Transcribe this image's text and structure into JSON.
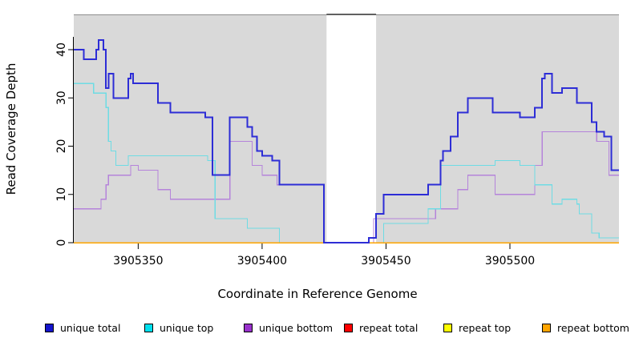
{
  "chart_data": {
    "type": "line",
    "subtype": "step-after",
    "title": "",
    "xlabel": "Coordinate in Reference Genome",
    "ylabel": "Read Coverage Depth",
    "xlim": [
      3905324,
      3905544
    ],
    "ylim": [
      0,
      47
    ],
    "x_ticks": [
      3905350,
      3905400,
      3905450,
      3905500
    ],
    "y_ticks": [
      0,
      10,
      20,
      30,
      40
    ],
    "grid": false,
    "panel_bg": "#d9d9d9",
    "panel_top_border": "#8e8e8e",
    "gap_region": {
      "x0": 3905426,
      "x1": 3905446,
      "color": "#ffffff",
      "note": "white band, no panel shading"
    },
    "legend_position": "bottom",
    "series": [
      {
        "name": "repeat total",
        "color": "#ff0000",
        "width": 1.2,
        "steps": [
          [
            3905324,
            0
          ],
          [
            3905544,
            0
          ]
        ]
      },
      {
        "name": "repeat top",
        "color": "#ffff00",
        "width": 1.2,
        "steps": [
          [
            3905324,
            0
          ],
          [
            3905544,
            0
          ]
        ]
      },
      {
        "name": "unique bottom",
        "color": "#b584da",
        "width": 1.2,
        "steps": [
          [
            3905324,
            7
          ],
          [
            3905335,
            9
          ],
          [
            3905337,
            12
          ],
          [
            3905338,
            14
          ],
          [
            3905347,
            16
          ],
          [
            3905350,
            15
          ],
          [
            3905358,
            11
          ],
          [
            3905363,
            9
          ],
          [
            3905387,
            21
          ],
          [
            3905396,
            16
          ],
          [
            3905400,
            14
          ],
          [
            3905406,
            12
          ],
          [
            3905425,
            0
          ],
          [
            3905445,
            5
          ],
          [
            3905470,
            7
          ],
          [
            3905479,
            11
          ],
          [
            3905483,
            14
          ],
          [
            3905494,
            10
          ],
          [
            3905510,
            16
          ],
          [
            3905513,
            23
          ],
          [
            3905535,
            21
          ],
          [
            3905540,
            14
          ],
          [
            3905544,
            14
          ]
        ]
      },
      {
        "name": "unique top",
        "color": "#6edce4",
        "width": 1.2,
        "steps": [
          [
            3905324,
            33
          ],
          [
            3905332,
            31
          ],
          [
            3905337,
            28
          ],
          [
            3905338,
            21
          ],
          [
            3905339,
            19
          ],
          [
            3905341,
            16
          ],
          [
            3905346,
            18
          ],
          [
            3905378,
            17
          ],
          [
            3905381,
            5
          ],
          [
            3905394,
            3
          ],
          [
            3905407,
            0
          ],
          [
            3905449,
            4
          ],
          [
            3905467,
            7
          ],
          [
            3905472,
            16
          ],
          [
            3905494,
            17
          ],
          [
            3905504,
            16
          ],
          [
            3905510,
            12
          ],
          [
            3905517,
            8
          ],
          [
            3905521,
            9
          ],
          [
            3905527,
            8
          ],
          [
            3905528,
            6
          ],
          [
            3905533,
            2
          ],
          [
            3905536,
            1
          ],
          [
            3905544,
            1
          ]
        ]
      },
      {
        "name": "repeat bottom",
        "color": "#ffa500",
        "width": 1.5,
        "steps": [
          [
            3905324,
            0
          ],
          [
            3905544,
            0
          ]
        ]
      },
      {
        "name": "unique total",
        "color": "#2d2dd6",
        "width": 2,
        "steps": [
          [
            3905324,
            40
          ],
          [
            3905328,
            38
          ],
          [
            3905333,
            40
          ],
          [
            3905334,
            42
          ],
          [
            3905336,
            40
          ],
          [
            3905337,
            32
          ],
          [
            3905338,
            35
          ],
          [
            3905340,
            30
          ],
          [
            3905346,
            34
          ],
          [
            3905347,
            35
          ],
          [
            3905348,
            33
          ],
          [
            3905358,
            29
          ],
          [
            3905363,
            27
          ],
          [
            3905377,
            26
          ],
          [
            3905380,
            14
          ],
          [
            3905387,
            26
          ],
          [
            3905394,
            24
          ],
          [
            3905396,
            22
          ],
          [
            3905398,
            19
          ],
          [
            3905400,
            18
          ],
          [
            3905404,
            17
          ],
          [
            3905407,
            12
          ],
          [
            3905425,
            0
          ],
          [
            3905443,
            1
          ],
          [
            3905446,
            6
          ],
          [
            3905449,
            10
          ],
          [
            3905467,
            12
          ],
          [
            3905472,
            17
          ],
          [
            3905473,
            19
          ],
          [
            3905476,
            22
          ],
          [
            3905479,
            27
          ],
          [
            3905483,
            30
          ],
          [
            3905493,
            27
          ],
          [
            3905504,
            26
          ],
          [
            3905510,
            28
          ],
          [
            3905513,
            34
          ],
          [
            3905514,
            35
          ],
          [
            3905517,
            31
          ],
          [
            3905521,
            32
          ],
          [
            3905527,
            29
          ],
          [
            3905533,
            25
          ],
          [
            3905535,
            23
          ],
          [
            3905538,
            22
          ],
          [
            3905541,
            15
          ],
          [
            3905544,
            15
          ]
        ]
      }
    ]
  },
  "legend": {
    "items": [
      {
        "label": "unique total",
        "color": "#1414cc"
      },
      {
        "label": "unique top",
        "color": "#00e0ee"
      },
      {
        "label": "unique bottom",
        "color": "#9932cc"
      },
      {
        "label": "repeat total",
        "color": "#ff0000"
      },
      {
        "label": "repeat top",
        "color": "#ffff00"
      },
      {
        "label": "repeat bottom",
        "color": "#ffa500"
      }
    ],
    "item_x": [
      56,
      180,
      304,
      429,
      553,
      676
    ]
  }
}
